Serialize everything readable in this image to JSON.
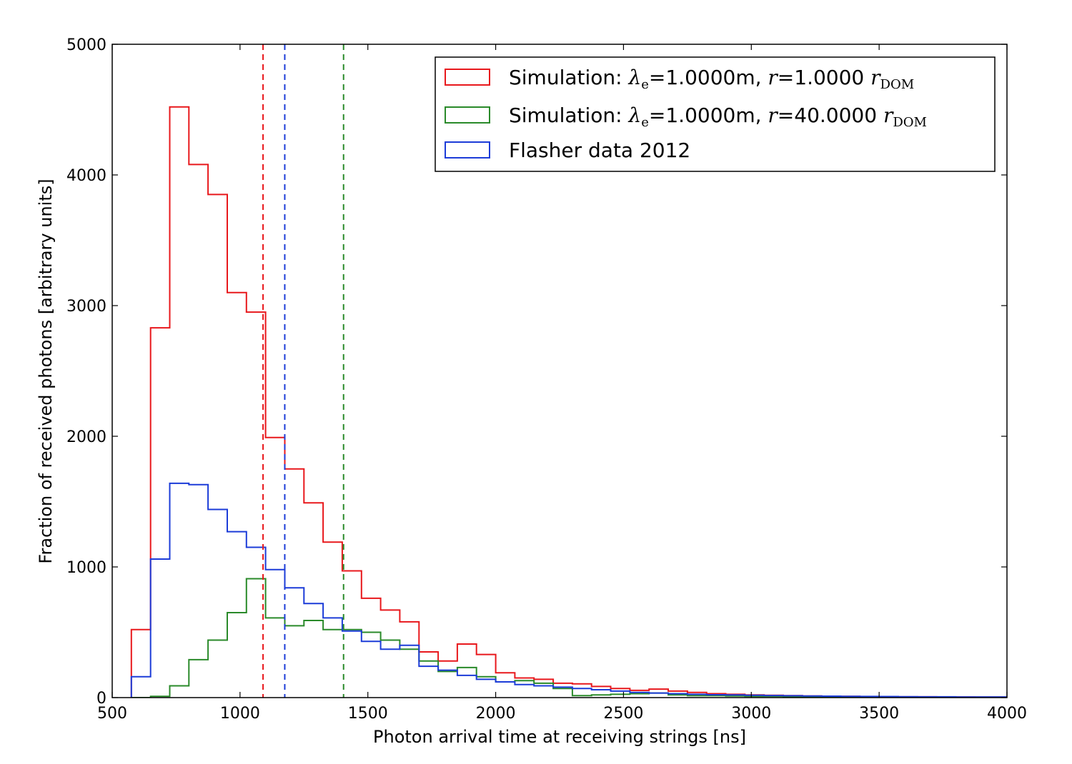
{
  "chart_data": {
    "type": "histogram-step",
    "xlabel": "Photon arrival time at receiving strings [ns]",
    "ylabel": "Fraction of received photons [arbitrary units]",
    "xlim": [
      500,
      4000
    ],
    "ylim": [
      0,
      5000
    ],
    "xticks": [
      500,
      1000,
      1500,
      2000,
      2500,
      3000,
      3500,
      4000
    ],
    "yticks": [
      0,
      1000,
      2000,
      3000,
      4000,
      5000
    ],
    "xtick_labels": [
      "500",
      "1000",
      "1500",
      "2000",
      "2500",
      "3000",
      "3500",
      "4000"
    ],
    "ytick_labels": [
      "0",
      "1000",
      "2000",
      "3000",
      "4000",
      "5000"
    ],
    "bin_edges": [
      575,
      650,
      725,
      800,
      875,
      950,
      1025,
      1100,
      1175,
      1250,
      1325,
      1400,
      1475,
      1550,
      1625,
      1700,
      1775,
      1850,
      1925,
      2000,
      2075,
      2150,
      2225,
      2300,
      2375,
      2450,
      2525,
      2600,
      2675,
      2750,
      2825,
      2900,
      2975,
      3050,
      3125,
      3200,
      3275,
      3350,
      3425,
      3500,
      3575,
      3650,
      3725,
      3800,
      3875,
      3950,
      4025
    ],
    "series": [
      {
        "color": "#e8181c",
        "legend_parts": {
          "prefix": "Simulation: ",
          "lambda": "λ",
          "lambda_sub": "e",
          "mid": "=1.0000m, ",
          "r": "r",
          "rval": "=1.0000 ",
          "rdom": "r",
          "rdom_sub": "DOM"
        },
        "values": [
          520,
          2830,
          4520,
          4080,
          3850,
          3100,
          2950,
          1990,
          1750,
          1490,
          1190,
          970,
          760,
          670,
          580,
          350,
          280,
          410,
          330,
          190,
          150,
          140,
          110,
          105,
          85,
          70,
          55,
          65,
          50,
          40,
          30,
          25,
          20,
          18,
          15,
          12,
          10,
          10,
          8,
          8,
          6,
          6,
          5,
          5,
          4,
          4
        ],
        "mean_line": 1090
      },
      {
        "color": "#2a8a2a",
        "legend_parts": {
          "prefix": "Simulation: ",
          "lambda": "λ",
          "lambda_sub": "e",
          "mid": "=1.0000m, ",
          "r": "r",
          "rval": "=40.0000 ",
          "rdom": "r",
          "rdom_sub": "DOM"
        },
        "values": [
          0,
          10,
          90,
          290,
          440,
          650,
          910,
          610,
          550,
          590,
          520,
          520,
          500,
          440,
          370,
          280,
          200,
          230,
          160,
          120,
          130,
          110,
          70,
          15,
          20,
          25,
          30,
          35,
          20,
          15,
          15,
          12,
          10,
          10,
          8,
          6,
          6,
          5,
          5,
          4,
          4,
          3,
          3,
          3,
          2,
          2
        ],
        "mean_line": 1405
      },
      {
        "color": "#1c3cd8",
        "legend_label": "Flasher data 2012",
        "values": [
          160,
          1060,
          1640,
          1630,
          1440,
          1270,
          1150,
          980,
          840,
          720,
          610,
          510,
          430,
          370,
          400,
          240,
          210,
          170,
          140,
          120,
          100,
          90,
          80,
          70,
          60,
          50,
          40,
          35,
          30,
          25,
          22,
          20,
          18,
          16,
          14,
          12,
          11,
          10,
          9,
          8,
          7,
          6,
          6,
          5,
          5,
          5
        ],
        "mean_line": 1175
      }
    ],
    "legend_position": "top-right",
    "grid": false
  }
}
